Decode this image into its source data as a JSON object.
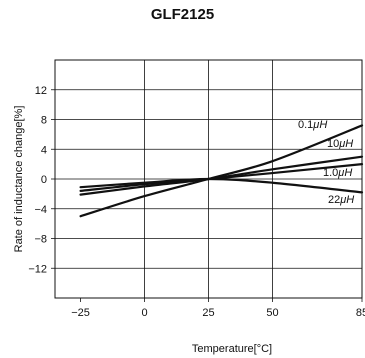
{
  "chart_data": {
    "type": "line",
    "title": "GLF2125",
    "xlabel": "Temperature[°C]",
    "ylabel": "Rate of inductance change[%]",
    "xlim": [
      -35,
      85
    ],
    "ylim": [
      -16,
      16
    ],
    "x_ticks": [
      -25,
      0,
      25,
      50,
      85
    ],
    "x_tick_labels": [
      "−25",
      "0",
      "25",
      "50",
      "85"
    ],
    "y_ticks": [
      12,
      8,
      4,
      0,
      -4,
      -8,
      -12
    ],
    "y_tick_labels": [
      "12",
      "8",
      "4",
      "0",
      "−4",
      "−8",
      "−12"
    ],
    "x_gridlines": [
      0,
      25,
      50
    ],
    "y_gridlines": [
      12,
      8,
      4,
      0,
      -4,
      -8,
      -12,
      -16
    ],
    "grid": true,
    "legend": "inline labels at right end of curves",
    "line_color": "#111111",
    "series": [
      {
        "name": "0.1μH",
        "label_main": "0.1",
        "label_unit": "μH",
        "x": [
          -25,
          0,
          25,
          50,
          85
        ],
        "y": [
          -5.0,
          -2.3,
          0,
          2.4,
          7.2
        ]
      },
      {
        "name": "10μH",
        "label_main": "10",
        "label_unit": "μH",
        "x": [
          -25,
          0,
          25,
          50,
          85
        ],
        "y": [
          -2.1,
          -1.0,
          0,
          1.3,
          3.0
        ]
      },
      {
        "name": "1.0μH",
        "label_main": "1.0",
        "label_unit": "μH",
        "x": [
          -25,
          0,
          25,
          50,
          85
        ],
        "y": [
          -1.6,
          -0.7,
          0,
          0.8,
          2.0
        ]
      },
      {
        "name": "22μH",
        "label_main": "22",
        "label_unit": "μH",
        "x": [
          -25,
          0,
          25,
          50,
          85
        ],
        "y": [
          -1.1,
          -0.5,
          0,
          -0.5,
          -1.8
        ]
      }
    ]
  }
}
